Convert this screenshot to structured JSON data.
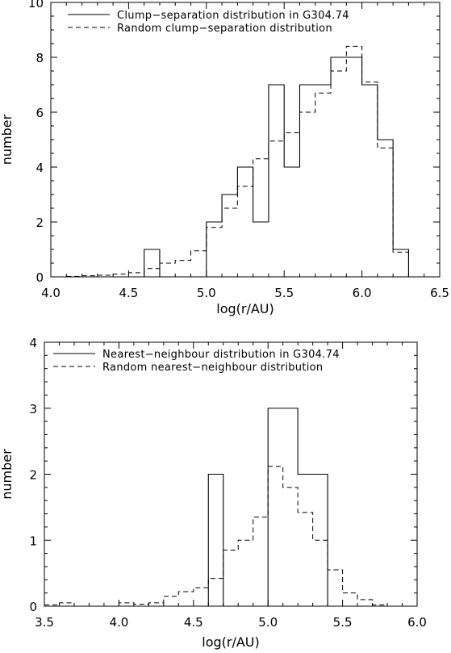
{
  "chart_data": [
    {
      "type": "histogram",
      "xlabel": "log(r/AU)",
      "ylabel": "number",
      "xlim": [
        4.0,
        6.5
      ],
      "ylim": [
        0,
        10
      ],
      "xticks": [
        "4.0",
        "4.5",
        "5.0",
        "5.5",
        "6.0",
        "6.5"
      ],
      "xtick_values": [
        4.0,
        4.5,
        5.0,
        5.5,
        6.0,
        6.5
      ],
      "yticks": [
        "0",
        "2",
        "4",
        "6",
        "8",
        "10"
      ],
      "ytick_values": [
        0,
        2,
        4,
        6,
        8,
        10
      ],
      "legend_position": "top-left",
      "series": [
        {
          "name": "Clump−separation distribution in G304.74",
          "style": "solid",
          "bins": [
            {
              "x0": 4.0,
              "x1": 4.6,
              "y": 0
            },
            {
              "x0": 4.6,
              "x1": 4.7,
              "y": 1
            },
            {
              "x0": 4.7,
              "x1": 5.0,
              "y": 0
            },
            {
              "x0": 5.0,
              "x1": 5.1,
              "y": 2
            },
            {
              "x0": 5.1,
              "x1": 5.2,
              "y": 3
            },
            {
              "x0": 5.2,
              "x1": 5.3,
              "y": 4
            },
            {
              "x0": 5.3,
              "x1": 5.4,
              "y": 2
            },
            {
              "x0": 5.4,
              "x1": 5.5,
              "y": 7
            },
            {
              "x0": 5.5,
              "x1": 5.6,
              "y": 4
            },
            {
              "x0": 5.6,
              "x1": 5.8,
              "y": 7
            },
            {
              "x0": 5.8,
              "x1": 6.0,
              "y": 8
            },
            {
              "x0": 6.0,
              "x1": 6.1,
              "y": 7
            },
            {
              "x0": 6.1,
              "x1": 6.2,
              "y": 5
            },
            {
              "x0": 6.2,
              "x1": 6.3,
              "y": 1
            },
            {
              "x0": 6.3,
              "x1": 6.5,
              "y": 0
            }
          ]
        },
        {
          "name": "Random clump−separation distribution",
          "style": "dashed",
          "bins": [
            {
              "x0": 4.0,
              "x1": 4.1,
              "y": 0
            },
            {
              "x0": 4.1,
              "x1": 4.2,
              "y": 0.02
            },
            {
              "x0": 4.2,
              "x1": 4.3,
              "y": 0.04
            },
            {
              "x0": 4.3,
              "x1": 4.4,
              "y": 0.06
            },
            {
              "x0": 4.4,
              "x1": 4.5,
              "y": 0.1
            },
            {
              "x0": 4.5,
              "x1": 4.6,
              "y": 0.15
            },
            {
              "x0": 4.6,
              "x1": 4.7,
              "y": 0.3
            },
            {
              "x0": 4.7,
              "x1": 4.8,
              "y": 0.5
            },
            {
              "x0": 4.8,
              "x1": 4.9,
              "y": 0.6
            },
            {
              "x0": 4.9,
              "x1": 5.0,
              "y": 0.95
            },
            {
              "x0": 5.0,
              "x1": 5.1,
              "y": 1.8
            },
            {
              "x0": 5.1,
              "x1": 5.2,
              "y": 2.5
            },
            {
              "x0": 5.2,
              "x1": 5.3,
              "y": 3.3
            },
            {
              "x0": 5.3,
              "x1": 5.4,
              "y": 4.3
            },
            {
              "x0": 5.4,
              "x1": 5.5,
              "y": 4.95
            },
            {
              "x0": 5.5,
              "x1": 5.6,
              "y": 5.25
            },
            {
              "x0": 5.6,
              "x1": 5.7,
              "y": 6.0
            },
            {
              "x0": 5.7,
              "x1": 5.8,
              "y": 6.7
            },
            {
              "x0": 5.8,
              "x1": 5.9,
              "y": 7.5
            },
            {
              "x0": 5.9,
              "x1": 6.0,
              "y": 8.4
            },
            {
              "x0": 6.0,
              "x1": 6.1,
              "y": 7.1
            },
            {
              "x0": 6.1,
              "x1": 6.2,
              "y": 4.7
            },
            {
              "x0": 6.2,
              "x1": 6.3,
              "y": 0.9
            },
            {
              "x0": 6.3,
              "x1": 6.5,
              "y": 0
            }
          ]
        }
      ]
    },
    {
      "type": "histogram",
      "xlabel": "log(r/AU)",
      "ylabel": "number",
      "xlim": [
        3.5,
        6.0
      ],
      "ylim": [
        0,
        4
      ],
      "xticks": [
        "3.5",
        "4.0",
        "4.5",
        "5.0",
        "5.5",
        "6.0"
      ],
      "xtick_values": [
        3.5,
        4.0,
        4.5,
        5.0,
        5.5,
        6.0
      ],
      "yticks": [
        "0",
        "1",
        "2",
        "3",
        "4"
      ],
      "ytick_values": [
        0,
        1,
        2,
        3,
        4
      ],
      "legend_position": "top-left",
      "series": [
        {
          "name": "Nearest−neighbour distribution in G304.74",
          "style": "solid",
          "bins": [
            {
              "x0": 3.5,
              "x1": 4.6,
              "y": 0
            },
            {
              "x0": 4.6,
              "x1": 4.7,
              "y": 2
            },
            {
              "x0": 4.7,
              "x1": 5.0,
              "y": 0
            },
            {
              "x0": 5.0,
              "x1": 5.2,
              "y": 3
            },
            {
              "x0": 5.2,
              "x1": 5.4,
              "y": 2
            },
            {
              "x0": 5.4,
              "x1": 6.0,
              "y": 0
            }
          ]
        },
        {
          "name": "Random nearest−neighbour distribution",
          "style": "dashed",
          "bins": [
            {
              "x0": 3.5,
              "x1": 3.6,
              "y": 0.02
            },
            {
              "x0": 3.6,
              "x1": 3.7,
              "y": 0.05
            },
            {
              "x0": 3.7,
              "x1": 3.9,
              "y": 0.0
            },
            {
              "x0": 3.9,
              "x1": 4.0,
              "y": 0.0
            },
            {
              "x0": 4.0,
              "x1": 4.1,
              "y": 0.05
            },
            {
              "x0": 4.1,
              "x1": 4.2,
              "y": 0.03
            },
            {
              "x0": 4.2,
              "x1": 4.3,
              "y": 0.05
            },
            {
              "x0": 4.3,
              "x1": 4.4,
              "y": 0.15
            },
            {
              "x0": 4.4,
              "x1": 4.5,
              "y": 0.22
            },
            {
              "x0": 4.5,
              "x1": 4.6,
              "y": 0.28
            },
            {
              "x0": 4.6,
              "x1": 4.7,
              "y": 0.42
            },
            {
              "x0": 4.7,
              "x1": 4.8,
              "y": 0.85
            },
            {
              "x0": 4.8,
              "x1": 4.9,
              "y": 1.0
            },
            {
              "x0": 4.9,
              "x1": 5.0,
              "y": 1.35
            },
            {
              "x0": 5.0,
              "x1": 5.1,
              "y": 2.12
            },
            {
              "x0": 5.1,
              "x1": 5.2,
              "y": 1.8
            },
            {
              "x0": 5.2,
              "x1": 5.3,
              "y": 1.42
            },
            {
              "x0": 5.3,
              "x1": 5.4,
              "y": 1.0
            },
            {
              "x0": 5.4,
              "x1": 5.5,
              "y": 0.55
            },
            {
              "x0": 5.5,
              "x1": 5.6,
              "y": 0.2
            },
            {
              "x0": 5.6,
              "x1": 5.7,
              "y": 0.1
            },
            {
              "x0": 5.7,
              "x1": 5.8,
              "y": 0.02
            },
            {
              "x0": 5.8,
              "x1": 5.9,
              "y": 0.0
            },
            {
              "x0": 5.9,
              "x1": 6.0,
              "y": 0.0
            }
          ]
        }
      ]
    }
  ]
}
